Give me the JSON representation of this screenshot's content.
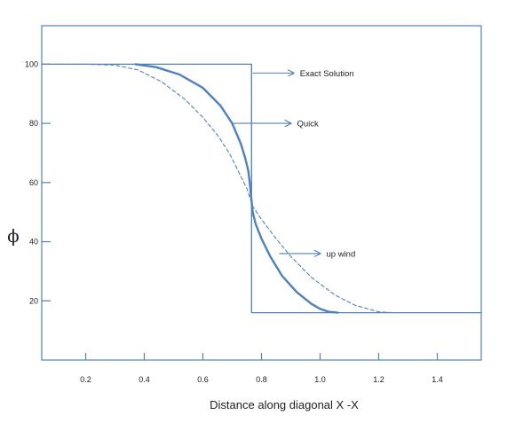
{
  "chart_data": {
    "type": "line",
    "title": "",
    "xlabel": "Distance along diagonal X -X",
    "ylabel": "ϕ",
    "xlim": [
      0.05,
      1.55
    ],
    "ylim": [
      0,
      113
    ],
    "x_ticks": [
      0.2,
      0.4,
      0.6,
      0.8,
      1.0,
      1.2,
      1.4
    ],
    "x_tick_labels": [
      "0.2",
      "0.4",
      "0.6",
      "0.8",
      "1.0",
      "1.2",
      "1.4"
    ],
    "y_ticks": [
      20,
      40,
      60,
      80,
      100
    ],
    "y_tick_labels": [
      "20",
      "40",
      "60",
      "80",
      "100"
    ],
    "grid": false,
    "colors": {
      "line": "#4f81bd",
      "axis": "#4f81bd",
      "text": "#222222"
    },
    "series": [
      {
        "name": "Exact Solution",
        "style": "thin-solid",
        "x": [
          0.05,
          0.766,
          0.766,
          1.55
        ],
        "y": [
          100,
          100,
          16,
          16
        ]
      },
      {
        "name": "Quick",
        "style": "thick-solid",
        "x": [
          0.37,
          0.44,
          0.52,
          0.6,
          0.66,
          0.7,
          0.73,
          0.745,
          0.755,
          0.76,
          0.765,
          0.77,
          0.78,
          0.8,
          0.83,
          0.87,
          0.92,
          0.97,
          1.0,
          1.03,
          1.06
        ],
        "y": [
          100,
          99,
          96.5,
          92,
          86,
          80,
          73,
          68,
          64,
          60,
          55,
          50,
          46,
          41,
          35,
          28.5,
          23,
          19,
          17.3,
          16.3,
          16
        ]
      },
      {
        "name": "up wind",
        "style": "dashed",
        "x": [
          0.05,
          0.2,
          0.3,
          0.38,
          0.46,
          0.54,
          0.6,
          0.65,
          0.69,
          0.72,
          0.75,
          0.77,
          0.8,
          0.85,
          0.9,
          0.97,
          1.05,
          1.12,
          1.2,
          1.25
        ],
        "y": [
          100,
          100,
          99.7,
          98,
          94,
          88,
          82,
          76,
          70,
          64,
          58,
          52,
          47.5,
          41,
          35,
          28,
          22,
          18.5,
          16.3,
          16
        ]
      }
    ],
    "annotations": [
      {
        "text": "Exact Solution",
        "arrow_from": [
          0.77,
          97
        ],
        "arrow_to": [
          0.91,
          97
        ]
      },
      {
        "text": "Quick",
        "arrow_from": [
          0.7,
          80
        ],
        "arrow_to": [
          0.9,
          80
        ]
      },
      {
        "text": "up wind",
        "arrow_from": [
          0.86,
          36
        ],
        "arrow_to": [
          1.0,
          36
        ]
      }
    ]
  }
}
